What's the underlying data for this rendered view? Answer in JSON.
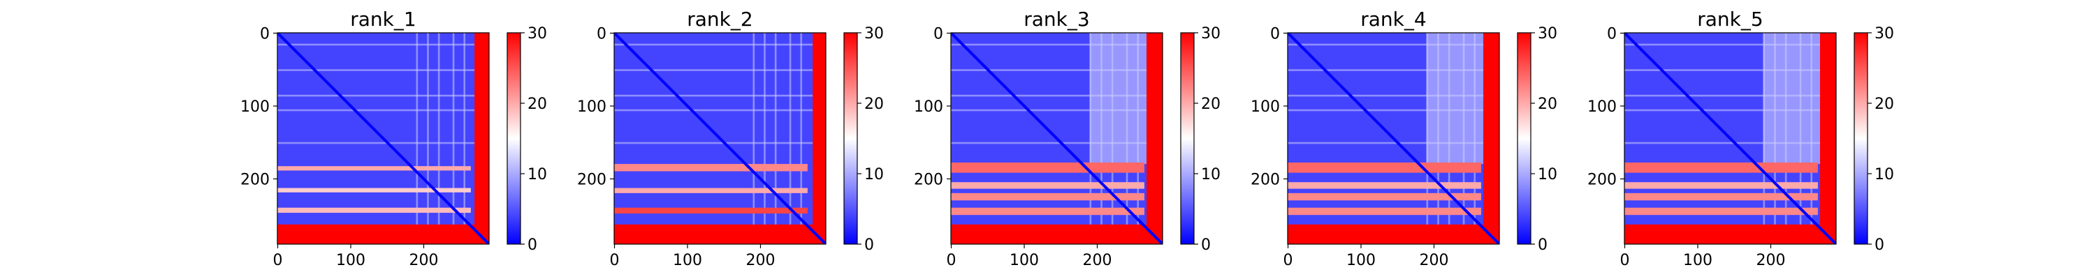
{
  "figure": {
    "background": "#ffffff"
  },
  "chart_data": [
    {
      "type": "heatmap",
      "title": "rank_1",
      "matrix_size": 290,
      "xlabel": "",
      "ylabel": "",
      "x_ticks": [
        0,
        100,
        200
      ],
      "y_ticks": [
        0,
        100,
        200
      ],
      "colorbar": {
        "min": 0,
        "max": 30,
        "ticks": [
          0,
          10,
          20,
          30
        ],
        "colors": [
          "#0000ff",
          "#ffffff",
          "#ff0000"
        ]
      },
      "high_error_row_bands": [
        {
          "start": 183,
          "end": 189,
          "value": 20
        },
        {
          "start": 213,
          "end": 219,
          "value": 18
        },
        {
          "start": 240,
          "end": 247,
          "value": 19
        },
        {
          "start": 263,
          "end": 290,
          "value": 30
        }
      ],
      "high_error_col_bands": [
        {
          "start": 270,
          "end": 290,
          "value": 30
        }
      ]
    },
    {
      "type": "heatmap",
      "title": "rank_2",
      "matrix_size": 290,
      "xlabel": "",
      "ylabel": "",
      "x_ticks": [
        0,
        100,
        200
      ],
      "y_ticks": [
        0,
        100,
        200
      ],
      "colorbar": {
        "min": 0,
        "max": 30,
        "ticks": [
          0,
          10,
          20,
          30
        ],
        "colors": [
          "#0000ff",
          "#ffffff",
          "#ff0000"
        ]
      },
      "high_error_row_bands": [
        {
          "start": 180,
          "end": 190,
          "value": 22
        },
        {
          "start": 213,
          "end": 220,
          "value": 20
        },
        {
          "start": 240,
          "end": 248,
          "value": 26
        },
        {
          "start": 263,
          "end": 290,
          "value": 30
        }
      ],
      "high_error_col_bands": [
        {
          "start": 272,
          "end": 290,
          "value": 30
        }
      ]
    },
    {
      "type": "heatmap",
      "title": "rank_3",
      "matrix_size": 290,
      "xlabel": "",
      "ylabel": "",
      "x_ticks": [
        0,
        100,
        200
      ],
      "y_ticks": [
        0,
        100,
        200
      ],
      "colorbar": {
        "min": 0,
        "max": 30,
        "ticks": [
          0,
          10,
          20,
          30
        ],
        "colors": [
          "#0000ff",
          "#ffffff",
          "#ff0000"
        ]
      },
      "high_error_row_bands": [
        {
          "start": 178,
          "end": 192,
          "value": 24
        },
        {
          "start": 205,
          "end": 214,
          "value": 20
        },
        {
          "start": 220,
          "end": 230,
          "value": 22
        },
        {
          "start": 240,
          "end": 250,
          "value": 22
        },
        {
          "start": 263,
          "end": 290,
          "value": 30
        }
      ],
      "high_error_col_bands": [
        {
          "start": 268,
          "end": 290,
          "value": 30
        }
      ]
    },
    {
      "type": "heatmap",
      "title": "rank_4",
      "matrix_size": 290,
      "xlabel": "",
      "ylabel": "",
      "x_ticks": [
        0,
        100,
        200
      ],
      "y_ticks": [
        0,
        100,
        200
      ],
      "colorbar": {
        "min": 0,
        "max": 30,
        "ticks": [
          0,
          10,
          20,
          30
        ],
        "colors": [
          "#0000ff",
          "#ffffff",
          "#ff0000"
        ]
      },
      "high_error_row_bands": [
        {
          "start": 178,
          "end": 192,
          "value": 24
        },
        {
          "start": 205,
          "end": 214,
          "value": 20
        },
        {
          "start": 220,
          "end": 230,
          "value": 22
        },
        {
          "start": 240,
          "end": 250,
          "value": 22
        },
        {
          "start": 263,
          "end": 290,
          "value": 30
        }
      ],
      "high_error_col_bands": [
        {
          "start": 268,
          "end": 290,
          "value": 30
        }
      ]
    },
    {
      "type": "heatmap",
      "title": "rank_5",
      "matrix_size": 290,
      "xlabel": "",
      "ylabel": "",
      "x_ticks": [
        0,
        100,
        200
      ],
      "y_ticks": [
        0,
        100,
        200
      ],
      "colorbar": {
        "min": 0,
        "max": 30,
        "ticks": [
          0,
          10,
          20,
          30
        ],
        "colors": [
          "#0000ff",
          "#ffffff",
          "#ff0000"
        ]
      },
      "high_error_row_bands": [
        {
          "start": 178,
          "end": 192,
          "value": 24
        },
        {
          "start": 205,
          "end": 214,
          "value": 20
        },
        {
          "start": 220,
          "end": 230,
          "value": 22
        },
        {
          "start": 240,
          "end": 250,
          "value": 22
        },
        {
          "start": 263,
          "end": 290,
          "value": 30
        }
      ],
      "high_error_col_bands": [
        {
          "start": 268,
          "end": 290,
          "value": 30
        }
      ]
    }
  ]
}
